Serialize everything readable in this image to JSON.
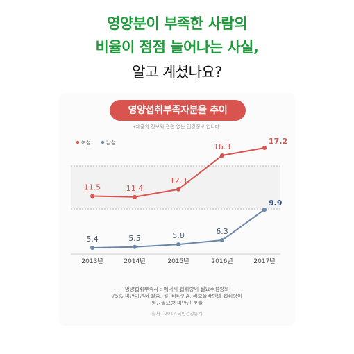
{
  "headline": {
    "line1": "영양분이 부족한 사람의",
    "line2": "비율이 점점 늘어나는 사실,",
    "line3": "알고 계셨나요?"
  },
  "card": {
    "title": "영양섭취부족자분율 추이",
    "disclaimer": "•제품의 정보와 관련 없는 건강정보 입니다.",
    "footnote_line1": "영양섭취부족자 : 에너지 섭취량이 필요추정량의",
    "footnote_line2": "75% 미만이면서 칼슘, 철, 비타민A, 리보플라빈의 섭취량이",
    "footnote_line3": "평균필요량 미만인 분율",
    "source": "출처 : 2017 국민건강통계"
  },
  "chart_data": {
    "type": "line",
    "categories": [
      "2013년",
      "2014년",
      "2015년",
      "2016년",
      "2017년"
    ],
    "series": [
      {
        "name": "여성",
        "values": [
          11.5,
          11.4,
          12.3,
          16.3,
          17.2
        ],
        "color": "#d9534f"
      },
      {
        "name": "남성",
        "values": [
          5.4,
          5.5,
          5.8,
          6.3,
          9.9
        ],
        "color": "#6a85a8"
      }
    ],
    "legend_position": "top-left",
    "grid": "dashed"
  }
}
